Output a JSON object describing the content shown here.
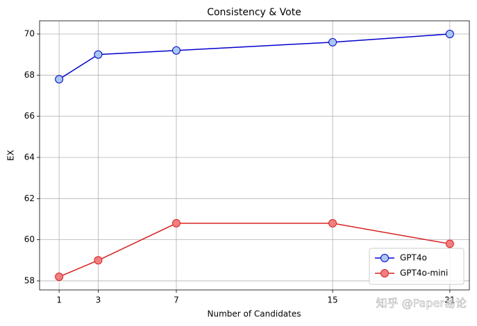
{
  "chart_data": {
    "type": "line",
    "title": "Consistency & Vote",
    "x_label": "Number of Candidates",
    "y_label": "EX",
    "x": [
      1,
      3,
      7,
      15,
      21
    ],
    "series": [
      {
        "name": "GPT4o",
        "color": "#0000cc",
        "marker_color": "#a8c8f0",
        "values": [
          67.8,
          69.0,
          69.2,
          69.6,
          70.0
        ]
      },
      {
        "name": "GPT4o-mini",
        "color": "#d62020",
        "marker_color": "#f08080",
        "values": [
          58.2,
          59.0,
          60.8,
          60.8,
          59.8
        ]
      }
    ],
    "xlim": [
      0,
      22
    ],
    "xticks": [
      1,
      3,
      7,
      15,
      21
    ],
    "ylim": [
      57.56,
      70.64
    ],
    "yticks": [
      58,
      60,
      62,
      64,
      66,
      68,
      70
    ],
    "grid": true,
    "legend": "lower right",
    "watermark": "知乎 @Paper易论"
  }
}
